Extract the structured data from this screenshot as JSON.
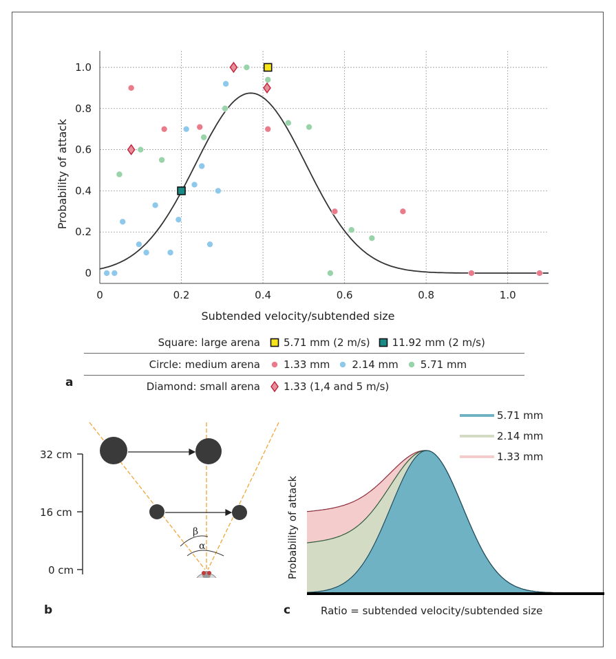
{
  "panel_a": {
    "panel_letter": "a",
    "legend_rows": [
      {
        "shape_label": "Square: large arena",
        "entries": [
          {
            "marker": "square",
            "color": "#f7e51c",
            "text": "5.71 mm (2 m/s)"
          },
          {
            "marker": "square",
            "color": "#1a8a86",
            "text": "11.92 mm (2 m/s)"
          }
        ]
      },
      {
        "shape_label": "Circle: medium arena",
        "entries": [
          {
            "marker": "circle",
            "color": "#ea7b8b",
            "text": "1.33 mm"
          },
          {
            "marker": "circle",
            "color": "#8ec9ec",
            "text": "2.14 mm"
          },
          {
            "marker": "circle",
            "color": "#99d3a9",
            "text": "5.71 mm"
          }
        ]
      },
      {
        "shape_label": "Diamond: small arena",
        "entries": [
          {
            "marker": "diamond",
            "color": "#e5909a",
            "text": "1.33 (1,4 and 5 m/s)"
          }
        ]
      }
    ]
  },
  "panel_b": {
    "panel_letter": "b",
    "scale_labels": [
      "32 cm",
      "16 cm",
      "0 cm"
    ],
    "angle_labels": [
      "β",
      "α"
    ]
  },
  "panel_c": {
    "panel_letter": "c",
    "xlabel": "Ratio = subtended velocity/subtended size",
    "ylabel": "Probability of attack",
    "legend": [
      {
        "name": "5.71 mm",
        "color": "#6fb2c4"
      },
      {
        "name": "2.14 mm",
        "color": "#d3dbc5"
      },
      {
        "name": "1.33 mm",
        "color": "#f4cccc"
      }
    ]
  },
  "chart_data": [
    {
      "type": "scatter",
      "title": "",
      "xlabel": "Subtended velocity/subtended size",
      "ylabel": "Probability of attack",
      "xlim": [
        0,
        1.1
      ],
      "ylim": [
        -0.05,
        1.08
      ],
      "xticks": [
        0,
        0.2,
        0.4,
        0.6,
        0.8,
        1.0
      ],
      "xtick_labels": [
        "0",
        "0.2",
        "0.4",
        "0.6",
        "0.8",
        "1.0"
      ],
      "yticks": [
        0,
        0.2,
        0.4,
        0.6,
        0.8,
        1.0
      ],
      "ytick_labels": [
        "0",
        "0.2",
        "0.4",
        "0.6",
        "0.8",
        "1.0"
      ],
      "grid": true,
      "series": [
        {
          "name": "1.33 mm",
          "marker": "circle",
          "color": "#ea7b8b",
          "points": [
            [
              0.077,
              0.9
            ],
            [
              0.158,
              0.7
            ],
            [
              0.245,
              0.71
            ],
            [
              0.412,
              0.7
            ],
            [
              0.576,
              0.3
            ],
            [
              0.743,
              0.3
            ],
            [
              0.911,
              0.0
            ],
            [
              1.078,
              0.0
            ]
          ]
        },
        {
          "name": "2.14 mm",
          "marker": "circle",
          "color": "#8ec9ec",
          "points": [
            [
              0.017,
              0.0
            ],
            [
              0.036,
              0.0
            ],
            [
              0.056,
              0.25
            ],
            [
              0.096,
              0.14
            ],
            [
              0.114,
              0.1
            ],
            [
              0.136,
              0.33
            ],
            [
              0.173,
              0.1
            ],
            [
              0.193,
              0.26
            ],
            [
              0.212,
              0.7
            ],
            [
              0.232,
              0.43
            ],
            [
              0.25,
              0.52
            ],
            [
              0.27,
              0.14
            ],
            [
              0.29,
              0.4
            ],
            [
              0.309,
              0.92
            ]
          ]
        },
        {
          "name": "5.71 mm",
          "marker": "circle",
          "color": "#99d3a9",
          "points": [
            [
              0.048,
              0.48
            ],
            [
              0.1,
              0.6
            ],
            [
              0.152,
              0.55
            ],
            [
              0.255,
              0.66
            ],
            [
              0.307,
              0.8
            ],
            [
              0.36,
              1.0
            ],
            [
              0.412,
              0.94
            ],
            [
              0.462,
              0.73
            ],
            [
              0.513,
              0.71
            ],
            [
              0.565,
              0.0
            ],
            [
              0.617,
              0.21
            ],
            [
              0.667,
              0.17
            ]
          ]
        },
        {
          "name": "5.71 mm (2 m/s)",
          "marker": "square",
          "color": "#f7e51c",
          "points": [
            [
              0.412,
              1.0
            ]
          ]
        },
        {
          "name": "11.92 mm (2 m/s)",
          "marker": "square",
          "color": "#1a8a86",
          "points": [
            [
              0.2,
              0.4
            ]
          ]
        },
        {
          "name": "1.33 (1,4 and 5 m/s)",
          "marker": "diamond",
          "color": "#e5909a",
          "points": [
            [
              0.077,
              0.6
            ],
            [
              0.328,
              1.0
            ],
            [
              0.41,
              0.9
            ]
          ]
        }
      ],
      "fit_curve": {
        "type": "gaussian",
        "peak_x": 0.37,
        "peak_y": 0.875,
        "sigma": 0.135,
        "color": "#333333"
      }
    },
    {
      "type": "area",
      "xlabel": "Ratio = subtended velocity/subtended size",
      "ylabel": "Probability of attack",
      "series": [
        {
          "name": "1.33 mm",
          "color": "#f4cccc",
          "line": "#8b2a3a",
          "left_level": 0.57
        },
        {
          "name": "2.14 mm",
          "color": "#d3dbc5",
          "line": "#2f5a3c",
          "left_level": 0.35
        },
        {
          "name": "5.71 mm",
          "color": "#6fb2c4",
          "line": "#1e4e60",
          "left_level": 0.0
        }
      ]
    }
  ]
}
